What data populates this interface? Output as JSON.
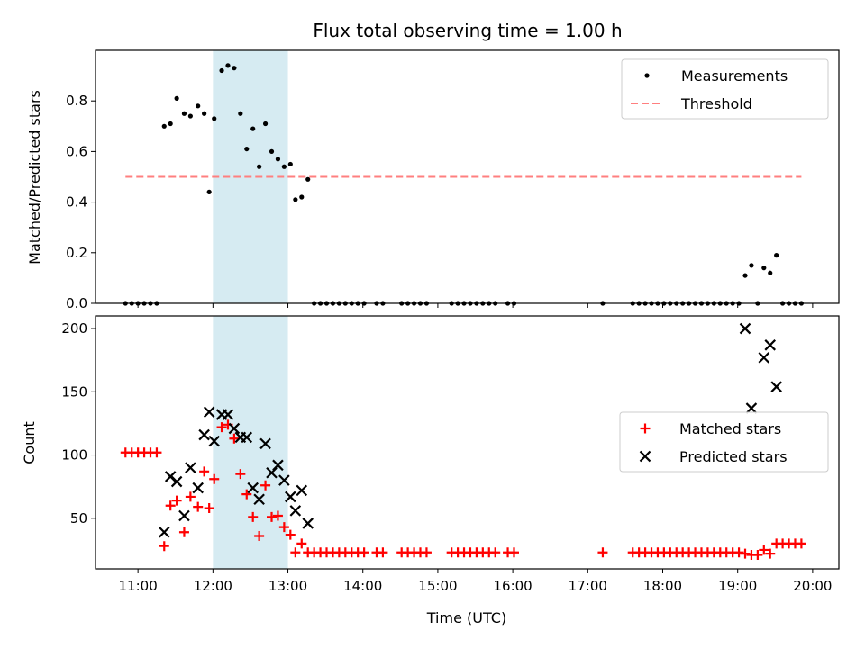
{
  "chart_data": [
    {
      "type": "scatter",
      "title": "Flux total observing time = 1.00 h",
      "xlabel": "",
      "ylabel": "Matched/Predicted stars",
      "xlim": [
        "10:26",
        "20:21"
      ],
      "ylim": [
        0,
        1.0
      ],
      "yticks": [
        "0.0",
        "0.2",
        "0.4",
        "0.6",
        "0.8"
      ],
      "xticks": [
        "11:00",
        "12:00",
        "13:00",
        "14:00",
        "15:00",
        "16:00",
        "17:00",
        "18:00",
        "19:00",
        "20:00"
      ],
      "shaded_interval": [
        "12:00",
        "13:00"
      ],
      "shaded_color": "#add8e6",
      "legend_position": "upper right",
      "series": [
        {
          "name": "Measurements",
          "color": "#000000",
          "marker": "dot",
          "points": [
            [
              "10:50",
              0
            ],
            [
              "10:55",
              0
            ],
            [
              "11:00",
              0
            ],
            [
              "11:05",
              0
            ],
            [
              "11:10",
              0
            ],
            [
              "11:15",
              0
            ],
            [
              "11:21",
              0.7
            ],
            [
              "11:26",
              0.71
            ],
            [
              "11:31",
              0.81
            ],
            [
              "11:37",
              0.75
            ],
            [
              "11:42",
              0.74
            ],
            [
              "11:48",
              0.78
            ],
            [
              "11:53",
              0.75
            ],
            [
              "11:57",
              0.44
            ],
            [
              "12:01",
              0.73
            ],
            [
              "12:07",
              0.92
            ],
            [
              "12:12",
              0.94
            ],
            [
              "12:17",
              0.93
            ],
            [
              "12:22",
              0.75
            ],
            [
              "12:27",
              0.61
            ],
            [
              "12:32",
              0.69
            ],
            [
              "12:37",
              0.54
            ],
            [
              "12:42",
              0.71
            ],
            [
              "12:47",
              0.6
            ],
            [
              "12:52",
              0.57
            ],
            [
              "12:57",
              0.54
            ],
            [
              "13:02",
              0.55
            ],
            [
              "13:06",
              0.41
            ],
            [
              "13:11",
              0.42
            ],
            [
              "13:16",
              0.49
            ],
            [
              "13:21",
              0
            ],
            [
              "13:26",
              0
            ],
            [
              "13:31",
              0
            ],
            [
              "13:36",
              0
            ],
            [
              "13:41",
              0
            ],
            [
              "13:46",
              0
            ],
            [
              "13:51",
              0
            ],
            [
              "13:56",
              0
            ],
            [
              "14:01",
              0
            ],
            [
              "14:11",
              0
            ],
            [
              "14:16",
              0
            ],
            [
              "14:31",
              0
            ],
            [
              "14:36",
              0
            ],
            [
              "14:41",
              0
            ],
            [
              "14:46",
              0
            ],
            [
              "14:51",
              0
            ],
            [
              "15:11",
              0
            ],
            [
              "15:16",
              0
            ],
            [
              "15:21",
              0
            ],
            [
              "15:26",
              0
            ],
            [
              "15:31",
              0
            ],
            [
              "15:36",
              0
            ],
            [
              "15:41",
              0
            ],
            [
              "15:46",
              0
            ],
            [
              "15:56",
              0
            ],
            [
              "16:01",
              0
            ],
            [
              "17:12",
              0
            ],
            [
              "17:36",
              0
            ],
            [
              "17:41",
              0
            ],
            [
              "17:46",
              0
            ],
            [
              "17:51",
              0
            ],
            [
              "17:56",
              0
            ],
            [
              "18:01",
              0
            ],
            [
              "18:06",
              0
            ],
            [
              "18:11",
              0
            ],
            [
              "18:16",
              0
            ],
            [
              "18:21",
              0
            ],
            [
              "18:26",
              0
            ],
            [
              "18:31",
              0
            ],
            [
              "18:36",
              0
            ],
            [
              "18:41",
              0
            ],
            [
              "18:46",
              0
            ],
            [
              "18:51",
              0
            ],
            [
              "18:56",
              0
            ],
            [
              "19:01",
              0
            ],
            [
              "19:06",
              0.11
            ],
            [
              "19:11",
              0.15
            ],
            [
              "19:16",
              0
            ],
            [
              "19:21",
              0.14
            ],
            [
              "19:26",
              0.12
            ],
            [
              "19:31",
              0.19
            ],
            [
              "19:36",
              0
            ],
            [
              "19:41",
              0
            ],
            [
              "19:46",
              0
            ],
            [
              "19:51",
              0
            ]
          ]
        },
        {
          "name": "Threshold",
          "color": "#ff7f7f",
          "style": "dashed",
          "points": [
            [
              "10:50",
              0.5
            ],
            [
              "19:51",
              0.5
            ]
          ]
        }
      ]
    },
    {
      "type": "scatter",
      "title": "",
      "xlabel": "Time (UTC)",
      "ylabel": "Count",
      "xlim": [
        "10:26",
        "20:21"
      ],
      "ylim": [
        10,
        210
      ],
      "yticks": [
        "50",
        "100",
        "150",
        "200"
      ],
      "xticks": [
        "11:00",
        "12:00",
        "13:00",
        "14:00",
        "15:00",
        "16:00",
        "17:00",
        "18:00",
        "19:00",
        "20:00"
      ],
      "shaded_interval": [
        "12:00",
        "13:00"
      ],
      "shaded_color": "#add8e6",
      "legend_position": "center right",
      "series": [
        {
          "name": "Matched stars",
          "color": "#ff0000",
          "marker": "plus",
          "points": [
            [
              "10:50",
              102
            ],
            [
              "10:55",
              102
            ],
            [
              "11:00",
              102
            ],
            [
              "11:05",
              102
            ],
            [
              "11:10",
              102
            ],
            [
              "11:15",
              102
            ],
            [
              "11:21",
              28
            ],
            [
              "11:26",
              60
            ],
            [
              "11:31",
              64
            ],
            [
              "11:37",
              39
            ],
            [
              "11:42",
              67
            ],
            [
              "11:48",
              59
            ],
            [
              "11:53",
              87
            ],
            [
              "11:57",
              58
            ],
            [
              "12:01",
              81
            ],
            [
              "12:07",
              122
            ],
            [
              "12:12",
              124
            ],
            [
              "12:17",
              113
            ],
            [
              "12:22",
              85
            ],
            [
              "12:27",
              69
            ],
            [
              "12:32",
              51
            ],
            [
              "12:37",
              36
            ],
            [
              "12:42",
              76
            ],
            [
              "12:47",
              51
            ],
            [
              "12:52",
              52
            ],
            [
              "12:57",
              43
            ],
            [
              "13:02",
              37
            ],
            [
              "13:06",
              23
            ],
            [
              "13:11",
              30
            ],
            [
              "13:16",
              23
            ],
            [
              "13:21",
              23
            ],
            [
              "13:26",
              23
            ],
            [
              "13:31",
              23
            ],
            [
              "13:36",
              23
            ],
            [
              "13:41",
              23
            ],
            [
              "13:46",
              23
            ],
            [
              "13:51",
              23
            ],
            [
              "13:56",
              23
            ],
            [
              "14:01",
              23
            ],
            [
              "14:11",
              23
            ],
            [
              "14:16",
              23
            ],
            [
              "14:31",
              23
            ],
            [
              "14:36",
              23
            ],
            [
              "14:41",
              23
            ],
            [
              "14:46",
              23
            ],
            [
              "14:51",
              23
            ],
            [
              "15:11",
              23
            ],
            [
              "15:16",
              23
            ],
            [
              "15:21",
              23
            ],
            [
              "15:26",
              23
            ],
            [
              "15:31",
              23
            ],
            [
              "15:36",
              23
            ],
            [
              "15:41",
              23
            ],
            [
              "15:46",
              23
            ],
            [
              "15:56",
              23
            ],
            [
              "16:01",
              23
            ],
            [
              "17:12",
              23
            ],
            [
              "17:36",
              23
            ],
            [
              "17:41",
              23
            ],
            [
              "17:46",
              23
            ],
            [
              "17:51",
              23
            ],
            [
              "17:56",
              23
            ],
            [
              "18:01",
              23
            ],
            [
              "18:06",
              23
            ],
            [
              "18:11",
              23
            ],
            [
              "18:16",
              23
            ],
            [
              "18:21",
              23
            ],
            [
              "18:26",
              23
            ],
            [
              "18:31",
              23
            ],
            [
              "18:36",
              23
            ],
            [
              "18:41",
              23
            ],
            [
              "18:46",
              23
            ],
            [
              "18:51",
              23
            ],
            [
              "18:56",
              23
            ],
            [
              "19:01",
              23
            ],
            [
              "19:06",
              22
            ],
            [
              "19:11",
              21
            ],
            [
              "19:16",
              21
            ],
            [
              "19:21",
              25
            ],
            [
              "19:26",
              22
            ],
            [
              "19:31",
              30
            ],
            [
              "19:36",
              30
            ],
            [
              "19:41",
              30
            ],
            [
              "19:46",
              30
            ],
            [
              "19:51",
              30
            ]
          ]
        },
        {
          "name": "Predicted stars",
          "color": "#000000",
          "marker": "x",
          "points": [
            [
              "11:21",
              39
            ],
            [
              "11:26",
              83
            ],
            [
              "11:31",
              79
            ],
            [
              "11:37",
              52
            ],
            [
              "11:42",
              90
            ],
            [
              "11:48",
              74
            ],
            [
              "11:53",
              116
            ],
            [
              "11:57",
              134
            ],
            [
              "12:01",
              111
            ],
            [
              "12:07",
              132
            ],
            [
              "12:12",
              132
            ],
            [
              "12:17",
              121
            ],
            [
              "12:22",
              114
            ],
            [
              "12:27",
              114
            ],
            [
              "12:32",
              74
            ],
            [
              "12:37",
              65
            ],
            [
              "12:42",
              109
            ],
            [
              "12:47",
              86
            ],
            [
              "12:52",
              92
            ],
            [
              "12:57",
              80
            ],
            [
              "13:02",
              67
            ],
            [
              "13:06",
              56
            ],
            [
              "13:11",
              72
            ],
            [
              "13:16",
              46
            ],
            [
              "19:06",
              200
            ],
            [
              "19:11",
              137
            ],
            [
              "19:21",
              177
            ],
            [
              "19:26",
              187
            ],
            [
              "19:31",
              154
            ]
          ]
        }
      ]
    }
  ]
}
